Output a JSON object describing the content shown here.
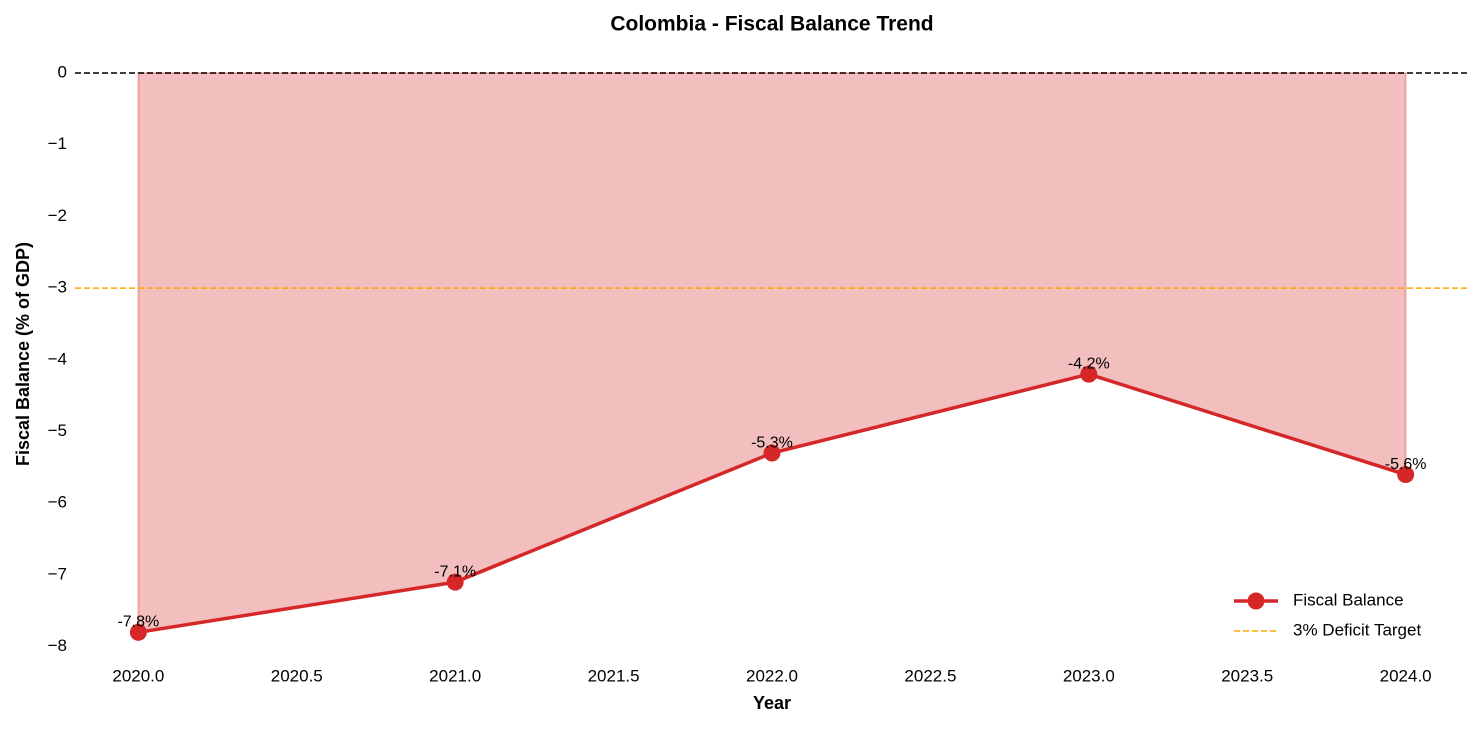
{
  "chart_data": {
    "type": "line",
    "title": "Colombia - Fiscal Balance Trend",
    "xlabel": "Year",
    "ylabel": "Fiscal Balance (% of GDP)",
    "x": [
      2020,
      2021,
      2022,
      2023,
      2024
    ],
    "series": [
      {
        "name": "Fiscal Balance",
        "color": "#d62728",
        "values": [
          -7.8,
          -7.1,
          -5.3,
          -4.2,
          -5.6
        ],
        "value_labels": [
          "-7.8%",
          "-7.1%",
          "-5.3%",
          "-4.2%",
          "-5.6%"
        ]
      }
    ],
    "fill_to_zero": true,
    "reference_lines": [
      {
        "value": 0,
        "color": "#000000"
      },
      {
        "value": -3,
        "color": "#ffa500",
        "name": "3% Deficit Target"
      }
    ],
    "xlim": [
      2019.8,
      2024.2
    ],
    "xticks": [
      {
        "value": 2020,
        "label": "2020.0"
      },
      {
        "value": 2020.5,
        "label": "2020.5"
      },
      {
        "value": 2021,
        "label": "2021.0"
      },
      {
        "value": 2021.5,
        "label": "2021.5"
      },
      {
        "value": 2022,
        "label": "2022.0"
      },
      {
        "value": 2022.5,
        "label": "2022.5"
      },
      {
        "value": 2023,
        "label": "2023.0"
      },
      {
        "value": 2023.5,
        "label": "2023.5"
      },
      {
        "value": 2024,
        "label": "2024.0"
      }
    ],
    "ylim": [
      -8.2,
      0
    ],
    "yticks": [
      0,
      {
        "value": -1,
        "label": "−1"
      },
      {
        "value": -2,
        "label": "−2"
      },
      {
        "value": -3,
        "label": "−3"
      },
      {
        "value": -4,
        "label": "−4"
      },
      {
        "value": -5,
        "label": "−5"
      },
      {
        "value": -6,
        "label": "−6"
      },
      {
        "value": -7,
        "label": "−7"
      },
      {
        "value": -8,
        "label": "−8"
      }
    ],
    "legend": "lower right"
  }
}
